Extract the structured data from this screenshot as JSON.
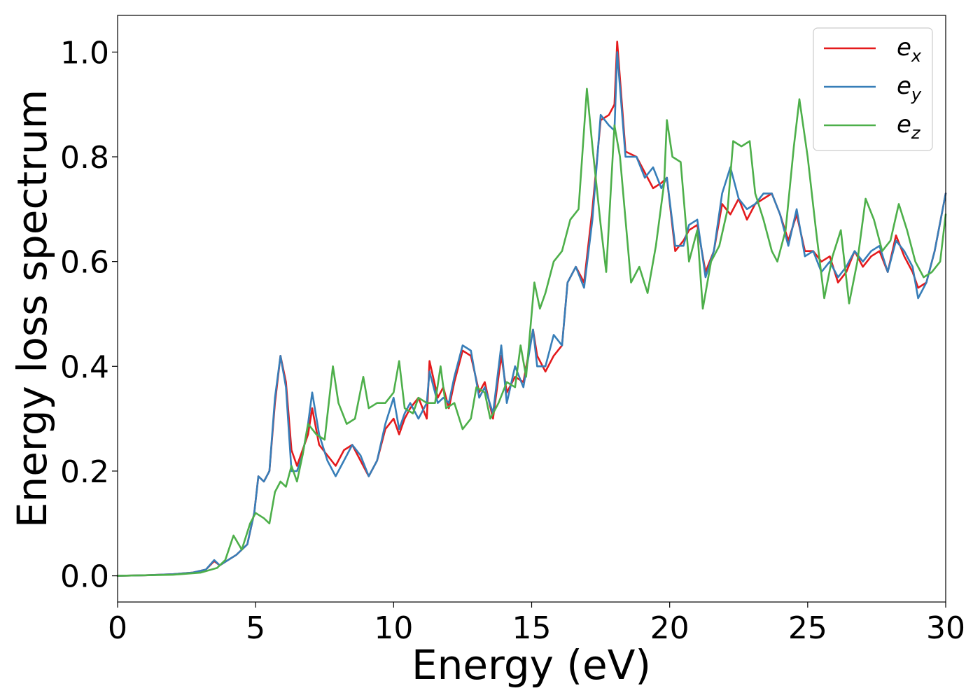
{
  "chart_data": {
    "type": "line",
    "xlabel": "Energy (eV)",
    "ylabel": "Energy loss spectrum",
    "xlim": [
      0,
      30
    ],
    "ylim": [
      -0.05,
      1.07
    ],
    "xticks": [
      0,
      5,
      10,
      15,
      20,
      25,
      30
    ],
    "yticks": [
      0.0,
      0.2,
      0.4,
      0.6,
      0.8,
      1.0
    ],
    "xtick_labels": [
      "0",
      "5",
      "10",
      "15",
      "20",
      "25",
      "30"
    ],
    "ytick_labels": [
      "0.0",
      "0.2",
      "0.4",
      "0.6",
      "0.8",
      "1.0"
    ],
    "grid": false,
    "legend_position": "top-right",
    "series": [
      {
        "name": "e_x",
        "label_base": "e",
        "label_sub": "x",
        "color": "#e41a1c",
        "points": [
          [
            0,
            0
          ],
          [
            1,
            0.001
          ],
          [
            2,
            0.003
          ],
          [
            2.7,
            0.006
          ],
          [
            3.2,
            0.012
          ],
          [
            3.5,
            0.028
          ],
          [
            3.7,
            0.02
          ],
          [
            4.0,
            0.03
          ],
          [
            4.3,
            0.04
          ],
          [
            4.7,
            0.06
          ],
          [
            4.95,
            0.12
          ],
          [
            5.1,
            0.19
          ],
          [
            5.3,
            0.18
          ],
          [
            5.5,
            0.2
          ],
          [
            5.7,
            0.33
          ],
          [
            5.9,
            0.42
          ],
          [
            6.1,
            0.37
          ],
          [
            6.3,
            0.24
          ],
          [
            6.5,
            0.21
          ],
          [
            6.7,
            0.24
          ],
          [
            6.9,
            0.27
          ],
          [
            7.05,
            0.32
          ],
          [
            7.3,
            0.25
          ],
          [
            7.6,
            0.23
          ],
          [
            7.9,
            0.21
          ],
          [
            8.2,
            0.24
          ],
          [
            8.5,
            0.25
          ],
          [
            8.8,
            0.22
          ],
          [
            9.1,
            0.19
          ],
          [
            9.4,
            0.22
          ],
          [
            9.7,
            0.28
          ],
          [
            10.0,
            0.3
          ],
          [
            10.2,
            0.27
          ],
          [
            10.4,
            0.3
          ],
          [
            10.6,
            0.32
          ],
          [
            10.9,
            0.34
          ],
          [
            11.2,
            0.3
          ],
          [
            11.3,
            0.41
          ],
          [
            11.6,
            0.34
          ],
          [
            11.8,
            0.36
          ],
          [
            12.0,
            0.32
          ],
          [
            12.2,
            0.37
          ],
          [
            12.5,
            0.43
          ],
          [
            12.8,
            0.42
          ],
          [
            13.1,
            0.35
          ],
          [
            13.3,
            0.37
          ],
          [
            13.6,
            0.3
          ],
          [
            13.9,
            0.42
          ],
          [
            14.1,
            0.35
          ],
          [
            14.4,
            0.38
          ],
          [
            14.7,
            0.37
          ],
          [
            15.05,
            0.47
          ],
          [
            15.2,
            0.42
          ],
          [
            15.5,
            0.39
          ],
          [
            15.8,
            0.42
          ],
          [
            16.1,
            0.44
          ],
          [
            16.3,
            0.56
          ],
          [
            16.6,
            0.59
          ],
          [
            16.9,
            0.56
          ],
          [
            17.2,
            0.7
          ],
          [
            17.5,
            0.87
          ],
          [
            17.8,
            0.88
          ],
          [
            18.0,
            0.9
          ],
          [
            18.1,
            1.02
          ],
          [
            18.4,
            0.81
          ],
          [
            18.8,
            0.8
          ],
          [
            19.1,
            0.77
          ],
          [
            19.4,
            0.74
          ],
          [
            19.7,
            0.75
          ],
          [
            19.9,
            0.76
          ],
          [
            20.2,
            0.62
          ],
          [
            20.5,
            0.64
          ],
          [
            20.7,
            0.66
          ],
          [
            21.0,
            0.67
          ],
          [
            21.3,
            0.58
          ],
          [
            21.6,
            0.62
          ],
          [
            21.9,
            0.71
          ],
          [
            22.2,
            0.69
          ],
          [
            22.5,
            0.72
          ],
          [
            22.8,
            0.68
          ],
          [
            23.1,
            0.71
          ],
          [
            23.4,
            0.72
          ],
          [
            23.7,
            0.73
          ],
          [
            24.0,
            0.69
          ],
          [
            24.3,
            0.64
          ],
          [
            24.6,
            0.69
          ],
          [
            24.9,
            0.62
          ],
          [
            25.2,
            0.62
          ],
          [
            25.5,
            0.6
          ],
          [
            25.8,
            0.61
          ],
          [
            26.1,
            0.56
          ],
          [
            26.4,
            0.58
          ],
          [
            26.7,
            0.62
          ],
          [
            27.0,
            0.59
          ],
          [
            27.3,
            0.61
          ],
          [
            27.6,
            0.62
          ],
          [
            27.9,
            0.58
          ],
          [
            28.2,
            0.65
          ],
          [
            28.5,
            0.61
          ],
          [
            28.8,
            0.58
          ],
          [
            29.0,
            0.55
          ],
          [
            29.3,
            0.56
          ],
          [
            29.6,
            0.62
          ],
          [
            30.0,
            0.73
          ]
        ]
      },
      {
        "name": "e_y",
        "label_base": "e",
        "label_sub": "y",
        "color": "#377eb8",
        "points": [
          [
            0,
            0
          ],
          [
            1,
            0.001
          ],
          [
            2,
            0.003
          ],
          [
            2.7,
            0.006
          ],
          [
            3.2,
            0.012
          ],
          [
            3.5,
            0.03
          ],
          [
            3.7,
            0.02
          ],
          [
            4.0,
            0.03
          ],
          [
            4.3,
            0.04
          ],
          [
            4.7,
            0.06
          ],
          [
            4.95,
            0.12
          ],
          [
            5.1,
            0.19
          ],
          [
            5.3,
            0.18
          ],
          [
            5.5,
            0.2
          ],
          [
            5.7,
            0.34
          ],
          [
            5.9,
            0.42
          ],
          [
            6.1,
            0.36
          ],
          [
            6.3,
            0.2
          ],
          [
            6.5,
            0.2
          ],
          [
            6.7,
            0.23
          ],
          [
            6.9,
            0.29
          ],
          [
            7.05,
            0.35
          ],
          [
            7.3,
            0.27
          ],
          [
            7.6,
            0.22
          ],
          [
            7.9,
            0.19
          ],
          [
            8.2,
            0.22
          ],
          [
            8.5,
            0.25
          ],
          [
            8.8,
            0.23
          ],
          [
            9.1,
            0.19
          ],
          [
            9.4,
            0.22
          ],
          [
            9.7,
            0.29
          ],
          [
            10.0,
            0.34
          ],
          [
            10.2,
            0.28
          ],
          [
            10.4,
            0.31
          ],
          [
            10.6,
            0.33
          ],
          [
            10.9,
            0.3
          ],
          [
            11.2,
            0.33
          ],
          [
            11.3,
            0.39
          ],
          [
            11.6,
            0.33
          ],
          [
            11.8,
            0.34
          ],
          [
            12.0,
            0.33
          ],
          [
            12.2,
            0.38
          ],
          [
            12.5,
            0.44
          ],
          [
            12.8,
            0.43
          ],
          [
            13.1,
            0.34
          ],
          [
            13.3,
            0.36
          ],
          [
            13.6,
            0.31
          ],
          [
            13.9,
            0.44
          ],
          [
            14.1,
            0.33
          ],
          [
            14.4,
            0.4
          ],
          [
            14.7,
            0.36
          ],
          [
            15.05,
            0.47
          ],
          [
            15.2,
            0.4
          ],
          [
            15.5,
            0.4
          ],
          [
            15.8,
            0.46
          ],
          [
            16.1,
            0.44
          ],
          [
            16.3,
            0.56
          ],
          [
            16.6,
            0.59
          ],
          [
            16.9,
            0.55
          ],
          [
            17.2,
            0.68
          ],
          [
            17.5,
            0.88
          ],
          [
            17.8,
            0.86
          ],
          [
            18.0,
            0.85
          ],
          [
            18.1,
            1.0
          ],
          [
            18.4,
            0.8
          ],
          [
            18.8,
            0.8
          ],
          [
            19.1,
            0.76
          ],
          [
            19.4,
            0.78
          ],
          [
            19.7,
            0.74
          ],
          [
            19.9,
            0.76
          ],
          [
            20.2,
            0.63
          ],
          [
            20.5,
            0.63
          ],
          [
            20.7,
            0.67
          ],
          [
            21.0,
            0.68
          ],
          [
            21.3,
            0.57
          ],
          [
            21.6,
            0.62
          ],
          [
            21.9,
            0.73
          ],
          [
            22.2,
            0.78
          ],
          [
            22.5,
            0.72
          ],
          [
            22.8,
            0.7
          ],
          [
            23.1,
            0.71
          ],
          [
            23.4,
            0.73
          ],
          [
            23.7,
            0.73
          ],
          [
            24.0,
            0.69
          ],
          [
            24.3,
            0.63
          ],
          [
            24.6,
            0.7
          ],
          [
            24.9,
            0.61
          ],
          [
            25.2,
            0.62
          ],
          [
            25.5,
            0.58
          ],
          [
            25.8,
            0.6
          ],
          [
            26.1,
            0.57
          ],
          [
            26.4,
            0.59
          ],
          [
            26.7,
            0.62
          ],
          [
            27.0,
            0.6
          ],
          [
            27.3,
            0.62
          ],
          [
            27.6,
            0.63
          ],
          [
            27.9,
            0.58
          ],
          [
            28.2,
            0.64
          ],
          [
            28.5,
            0.62
          ],
          [
            28.8,
            0.59
          ],
          [
            29.0,
            0.53
          ],
          [
            29.3,
            0.56
          ],
          [
            29.6,
            0.62
          ],
          [
            30.0,
            0.73
          ]
        ]
      },
      {
        "name": "e_z",
        "label_base": "e",
        "label_sub": "z",
        "color": "#4daf4a",
        "points": [
          [
            0,
            0
          ],
          [
            1,
            0.001
          ],
          [
            2,
            0.002
          ],
          [
            3,
            0.006
          ],
          [
            3.6,
            0.015
          ],
          [
            3.9,
            0.03
          ],
          [
            4.2,
            0.077
          ],
          [
            4.5,
            0.05
          ],
          [
            4.8,
            0.1
          ],
          [
            5.0,
            0.12
          ],
          [
            5.3,
            0.11
          ],
          [
            5.5,
            0.1
          ],
          [
            5.7,
            0.16
          ],
          [
            5.9,
            0.18
          ],
          [
            6.1,
            0.17
          ],
          [
            6.3,
            0.21
          ],
          [
            6.5,
            0.18
          ],
          [
            6.7,
            0.23
          ],
          [
            6.9,
            0.29
          ],
          [
            7.2,
            0.27
          ],
          [
            7.5,
            0.26
          ],
          [
            7.8,
            0.4
          ],
          [
            8.0,
            0.33
          ],
          [
            8.3,
            0.29
          ],
          [
            8.6,
            0.3
          ],
          [
            8.9,
            0.38
          ],
          [
            9.1,
            0.32
          ],
          [
            9.4,
            0.33
          ],
          [
            9.7,
            0.33
          ],
          [
            10.0,
            0.35
          ],
          [
            10.2,
            0.41
          ],
          [
            10.4,
            0.32
          ],
          [
            10.7,
            0.31
          ],
          [
            10.9,
            0.34
          ],
          [
            11.2,
            0.33
          ],
          [
            11.5,
            0.33
          ],
          [
            11.7,
            0.4
          ],
          [
            11.9,
            0.32
          ],
          [
            12.2,
            0.33
          ],
          [
            12.5,
            0.28
          ],
          [
            12.8,
            0.3
          ],
          [
            13.0,
            0.36
          ],
          [
            13.3,
            0.35
          ],
          [
            13.5,
            0.3
          ],
          [
            13.8,
            0.33
          ],
          [
            14.1,
            0.37
          ],
          [
            14.4,
            0.36
          ],
          [
            14.6,
            0.44
          ],
          [
            14.8,
            0.38
          ],
          [
            15.1,
            0.56
          ],
          [
            15.3,
            0.51
          ],
          [
            15.5,
            0.54
          ],
          [
            15.8,
            0.6
          ],
          [
            16.1,
            0.62
          ],
          [
            16.4,
            0.68
          ],
          [
            16.7,
            0.7
          ],
          [
            17.0,
            0.93
          ],
          [
            17.2,
            0.82
          ],
          [
            17.5,
            0.67
          ],
          [
            17.7,
            0.58
          ],
          [
            18.0,
            0.86
          ],
          [
            18.2,
            0.8
          ],
          [
            18.6,
            0.56
          ],
          [
            18.9,
            0.59
          ],
          [
            19.2,
            0.54
          ],
          [
            19.5,
            0.63
          ],
          [
            19.8,
            0.75
          ],
          [
            19.9,
            0.87
          ],
          [
            20.1,
            0.8
          ],
          [
            20.4,
            0.79
          ],
          [
            20.7,
            0.6
          ],
          [
            21.0,
            0.66
          ],
          [
            21.2,
            0.51
          ],
          [
            21.5,
            0.6
          ],
          [
            21.8,
            0.63
          ],
          [
            22.1,
            0.7
          ],
          [
            22.3,
            0.83
          ],
          [
            22.6,
            0.82
          ],
          [
            22.9,
            0.83
          ],
          [
            23.1,
            0.73
          ],
          [
            23.4,
            0.68
          ],
          [
            23.7,
            0.62
          ],
          [
            23.9,
            0.6
          ],
          [
            24.2,
            0.66
          ],
          [
            24.5,
            0.82
          ],
          [
            24.7,
            0.91
          ],
          [
            25.0,
            0.8
          ],
          [
            25.3,
            0.66
          ],
          [
            25.6,
            0.53
          ],
          [
            25.9,
            0.61
          ],
          [
            26.2,
            0.66
          ],
          [
            26.5,
            0.52
          ],
          [
            26.8,
            0.6
          ],
          [
            27.1,
            0.72
          ],
          [
            27.4,
            0.68
          ],
          [
            27.7,
            0.62
          ],
          [
            28.0,
            0.64
          ],
          [
            28.3,
            0.71
          ],
          [
            28.6,
            0.66
          ],
          [
            28.9,
            0.6
          ],
          [
            29.2,
            0.57
          ],
          [
            29.5,
            0.58
          ],
          [
            29.8,
            0.6
          ],
          [
            30.0,
            0.69
          ]
        ]
      }
    ]
  }
}
